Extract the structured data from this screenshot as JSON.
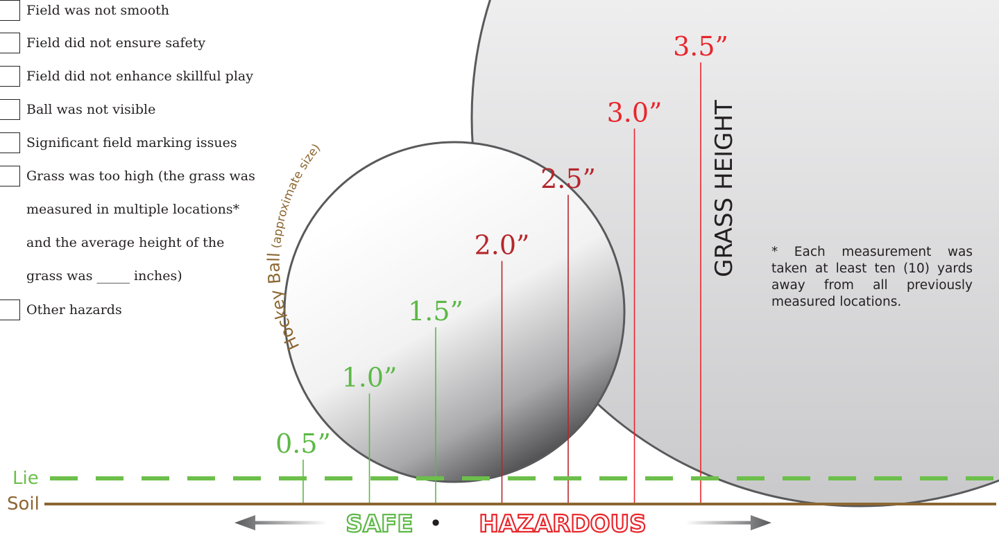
{
  "checklist": {
    "items": [
      {
        "label": "Field was not smooth"
      },
      {
        "label": "Field did not ensure safety"
      },
      {
        "label": "Field did not enhance skillful play"
      },
      {
        "label": "Ball was not visible"
      },
      {
        "label": "Significant field marking issues"
      },
      {
        "label": "Grass was too high (the grass was"
      },
      {
        "label": "Other hazards"
      }
    ],
    "grass_continuation": [
      "measured in multiple locations*",
      "and the average height of the",
      "grass was _____ inches)"
    ]
  },
  "diagram": {
    "ball_label": "Hockey Ball",
    "ball_note": "(approximate size)",
    "axis_title": "GRASS HEIGHT",
    "lie_label": "Lie",
    "soil_label": "Soil",
    "safe_label": "SAFE",
    "separator": "•",
    "hazardous_label": "HAZARDOUS",
    "footnote": "* Each measurement was taken at least ten (10) yards away from all previously measured locations.",
    "colors": {
      "safe": "#5cb846",
      "hazard_dark": "#b5262b",
      "hazard_bright": "#e8262b",
      "soil": "#8c6631",
      "lie": "#6cbf4a",
      "text": "#231f20"
    },
    "heights": [
      {
        "label": "0.5”",
        "color": "safe"
      },
      {
        "label": "1.0”",
        "color": "safe"
      },
      {
        "label": "1.5”",
        "color": "safe"
      },
      {
        "label": "2.0”",
        "color": "hazard_dark"
      },
      {
        "label": "2.5”",
        "color": "hazard_dark"
      },
      {
        "label": "3.0”",
        "color": "hazard_bright"
      },
      {
        "label": "3.5”",
        "color": "hazard_bright"
      }
    ]
  }
}
